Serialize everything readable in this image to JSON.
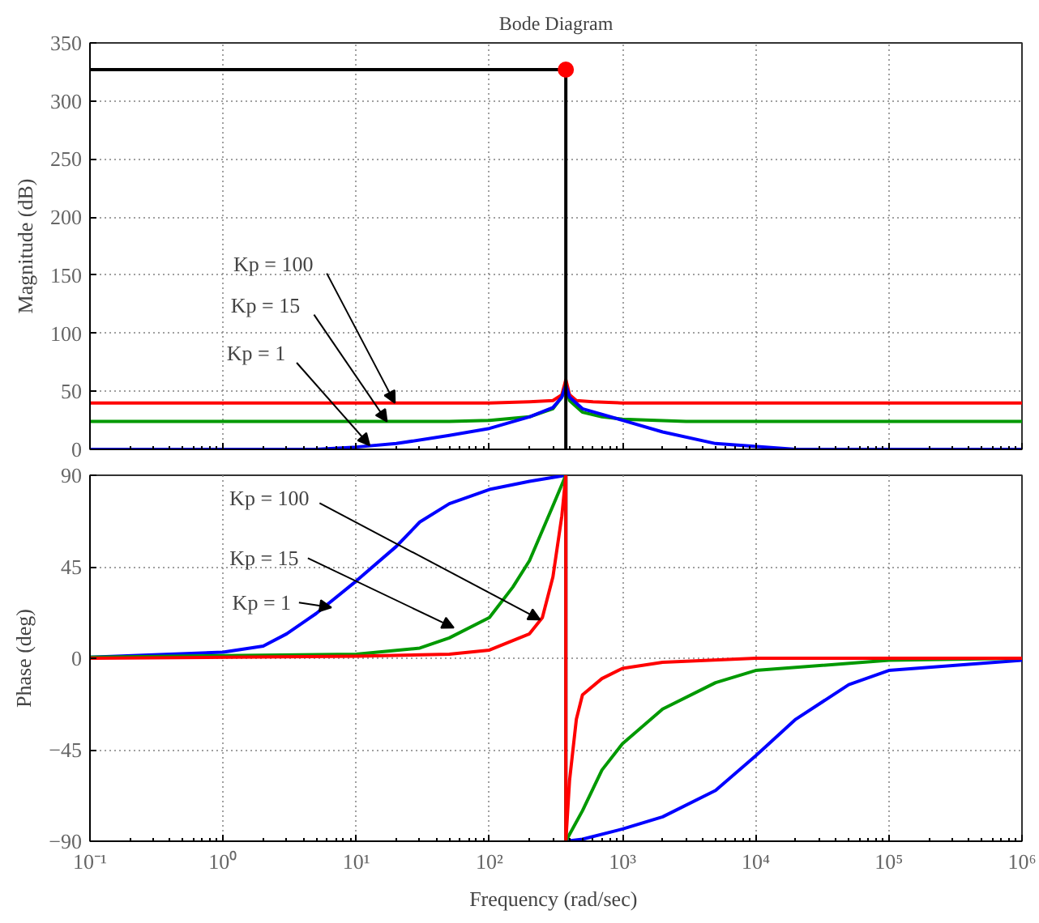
{
  "chart_data": [
    {
      "type": "line",
      "title": "Bode Diagram",
      "ylabel": "Magnitude (dB)",
      "log": "x",
      "xlim": [
        0.1,
        1000000
      ],
      "xticks": [
        {
          "value": 0.1,
          "label": null
        },
        {
          "value": 1,
          "label": null
        },
        {
          "value": 10,
          "label": null
        },
        {
          "value": 100,
          "label": null
        },
        {
          "value": 1000,
          "label": null
        },
        {
          "value": 10000,
          "label": null
        },
        {
          "value": 100000,
          "label": null
        },
        {
          "value": 1000000,
          "label": null
        }
      ],
      "ylim": [
        0,
        350
      ],
      "yticks": [
        0,
        50,
        100,
        150,
        200,
        250,
        300,
        350
      ],
      "grid": true,
      "tick_labels": "y",
      "series": [
        {
          "color": "#ff0000",
          "x": [
            0.1,
            10,
            100,
            200,
            300,
            350,
            375,
            400,
            450,
            600,
            1000,
            10000,
            1000000
          ],
          "values": [
            40,
            40,
            40,
            41,
            42,
            47,
            60,
            47,
            42,
            41,
            40,
            40,
            40
          ]
        },
        {
          "color": "#009900",
          "x": [
            0.1,
            10,
            50,
            100,
            200,
            300,
            350,
            375,
            400,
            500,
            700,
            1000,
            3000,
            10000,
            1000000
          ],
          "values": [
            24,
            24,
            24,
            25,
            28,
            35,
            45,
            55,
            42,
            32,
            28,
            26,
            24,
            24,
            24
          ]
        },
        {
          "color": "#0000ff",
          "x": [
            0.1,
            5,
            10,
            20,
            50,
            100,
            200,
            300,
            350,
            375,
            400,
            500,
            1000,
            2000,
            5000,
            20000,
            1000000
          ],
          "values": [
            0,
            0,
            2,
            5,
            12,
            18,
            28,
            36,
            45,
            55,
            45,
            35,
            25,
            15,
            5,
            0,
            0
          ]
        },
        {
          "type": "line",
          "color": "#000000",
          "x": [
            0.1,
            375,
            375
          ],
          "values": [
            327,
            327,
            0
          ]
        },
        {
          "type": "scatter",
          "marker": "circle",
          "color": "#ff0000",
          "x": [
            375
          ],
          "values": [
            327
          ]
        }
      ],
      "annotations": [
        {
          "text": "Kp = 100",
          "x": 19.5,
          "y": 40
        },
        {
          "text": "Kp = 15",
          "x": 17,
          "y": 24
        },
        {
          "text": "Kp = 1",
          "x": 12.6,
          "y": 3.5
        }
      ]
    },
    {
      "type": "line",
      "xlabel": "Frequency  (rad/sec)",
      "ylabel": "Phase (deg)",
      "log": "x",
      "xlim": [
        0.1,
        1000000
      ],
      "xticks": [
        {
          "value": 0.1,
          "label": "10⁻¹"
        },
        {
          "value": 1,
          "label": "10⁰"
        },
        {
          "value": 10,
          "label": "10¹"
        },
        {
          "value": 100,
          "label": "10²"
        },
        {
          "value": 1000,
          "label": "10³"
        },
        {
          "value": 10000,
          "label": "10⁴"
        },
        {
          "value": 100000,
          "label": "10⁵"
        },
        {
          "value": 1000000,
          "label": "10⁶"
        }
      ],
      "ylim": [
        -90,
        90
      ],
      "yticks": [
        -90,
        -45,
        0,
        45,
        90
      ],
      "grid": true,
      "series": [
        {
          "color": "#0000ff",
          "x": [
            0.1,
            1,
            2,
            3,
            5,
            10,
            20,
            30,
            50,
            100,
            200,
            375,
            375,
            500,
            1000,
            2000,
            5000,
            10000,
            20000,
            50000,
            100000,
            1000000
          ],
          "values": [
            0.5,
            3,
            6,
            12,
            22,
            38,
            55,
            67,
            76,
            83,
            87,
            90,
            -90,
            -89,
            -84,
            -78,
            -65,
            -48,
            -30,
            -13,
            -6,
            -1
          ]
        },
        {
          "color": "#009900",
          "x": [
            0.1,
            10,
            30,
            50,
            100,
            150,
            200,
            300,
            375,
            375,
            500,
            700,
            1000,
            2000,
            5000,
            10000,
            100000,
            1000000
          ],
          "values": [
            0.5,
            2,
            5,
            10,
            20,
            35,
            48,
            75,
            90,
            -90,
            -75,
            -55,
            -42,
            -25,
            -12,
            -6,
            -1,
            0
          ]
        },
        {
          "color": "#ff0000",
          "x": [
            0.1,
            10,
            50,
            100,
            200,
            250,
            300,
            350,
            375,
            375,
            400,
            450,
            500,
            700,
            1000,
            2000,
            10000,
            1000000
          ],
          "values": [
            0,
            1,
            2,
            4,
            12,
            20,
            40,
            70,
            90,
            -90,
            -60,
            -30,
            -18,
            -10,
            -5,
            -2,
            0,
            0
          ]
        }
      ],
      "annotations": [
        {
          "text": "Kp = 100",
          "x": 240,
          "y": 19
        },
        {
          "text": "Kp = 15",
          "x": 54,
          "y": 15
        },
        {
          "text": "Kp = 1",
          "x": 6.5,
          "y": 25
        }
      ]
    }
  ]
}
